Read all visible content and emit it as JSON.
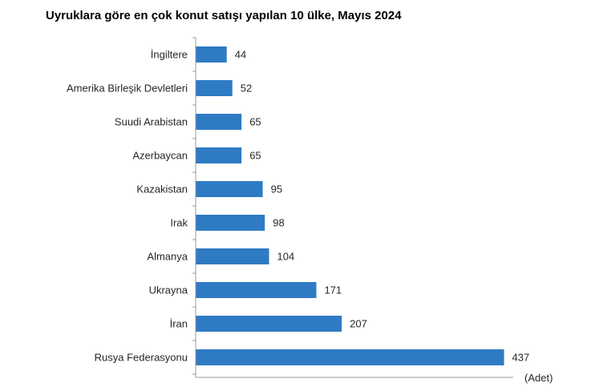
{
  "chart_data": {
    "type": "bar",
    "orientation": "horizontal",
    "title": "Uyruklara göre en çok konut satışı yapılan 10 ülke, Mayıs 2024",
    "unit_label": "(Adet)",
    "categories": [
      "İngiltere",
      "Amerika Birleşik Devletleri",
      "Suudi Arabistan",
      "Azerbaycan",
      "Kazakistan",
      "Irak",
      "Almanya",
      "Ukrayna",
      "İran",
      "Rusya Federasyonu"
    ],
    "values": [
      44,
      52,
      65,
      65,
      95,
      98,
      104,
      171,
      207,
      437
    ],
    "xlim": [
      0,
      500
    ],
    "bar_color": "#2e7bc4",
    "grid": false,
    "data_labels": true
  }
}
